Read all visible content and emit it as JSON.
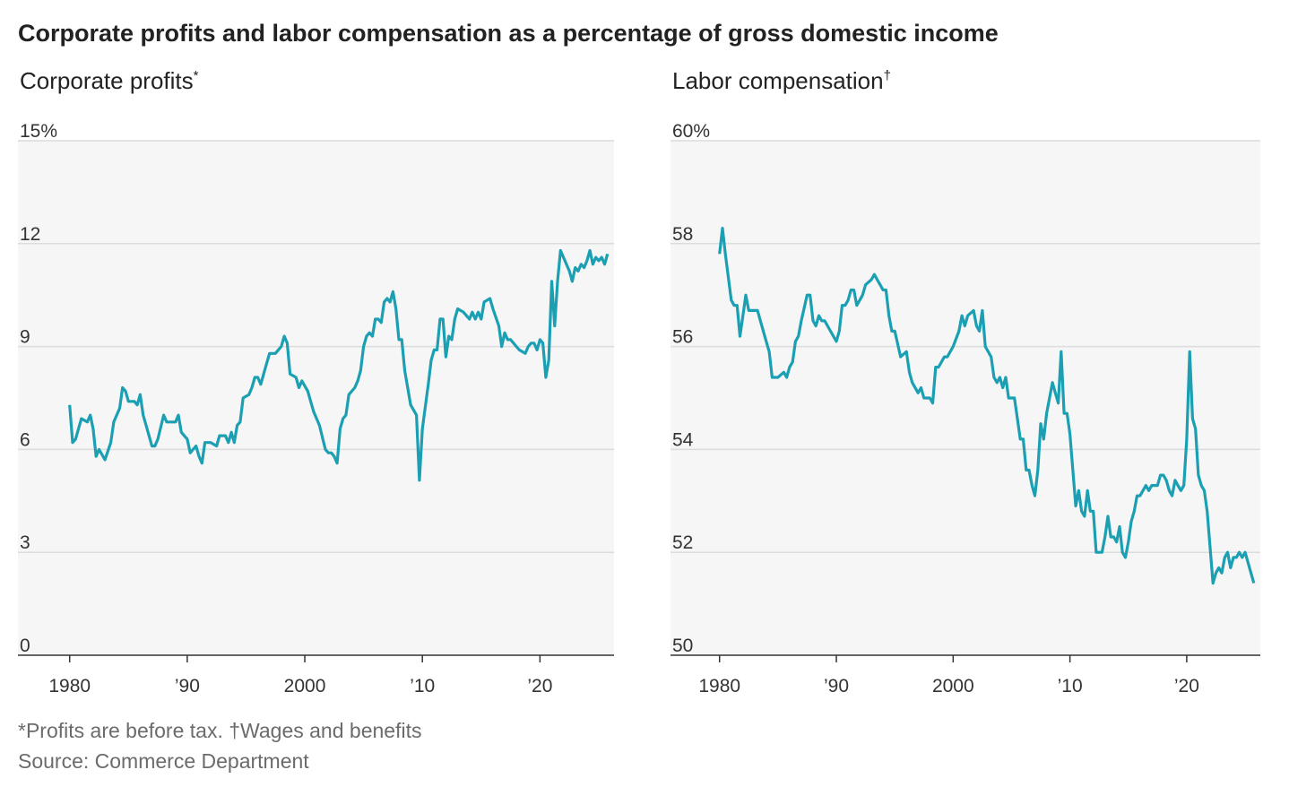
{
  "title": "Corporate profits and labor compensation as a percentage of gross domestic income",
  "footnote": "*Profits are before tax. †Wages and benefits",
  "source": "Source: Commerce Department",
  "chart_data": [
    {
      "type": "line",
      "title": "Corporate profits",
      "title_note": "*",
      "color": "#1a9fb3",
      "grid": true,
      "xlim": [
        1975.6,
        2026.3
      ],
      "ylim": [
        0,
        15
      ],
      "yticks": [
        0,
        3,
        6,
        9,
        12,
        {
          "value": 15,
          "label": "15%"
        }
      ],
      "xticks": [
        1980,
        {
          "value": 1990,
          "label": "’90"
        },
        2000,
        {
          "value": 2010,
          "label": "’10"
        },
        {
          "value": 2020,
          "label": "’20"
        }
      ],
      "x": [
        1980,
        1980.25,
        1980.5,
        1981,
        1981.5,
        1981.75,
        1982,
        1982.25,
        1982.5,
        1983,
        1983.5,
        1983.75,
        1984.25,
        1984.5,
        1984.75,
        1985,
        1985.5,
        1985.75,
        1986,
        1986.25,
        1986.5,
        1987,
        1987.25,
        1987.5,
        1988,
        1988.25,
        1988.75,
        1989,
        1989.25,
        1989.5,
        1990,
        1990.25,
        1990.5,
        1990.75,
        1991,
        1991.25,
        1991.5,
        1992,
        1992.5,
        1992.75,
        1993.25,
        1993.5,
        1993.75,
        1994,
        1994.25,
        1994.5,
        1994.75,
        1995.25,
        1995.5,
        1995.75,
        1996,
        1996.25,
        1996.75,
        1997,
        1997.5,
        1998,
        1998.25,
        1998.5,
        1998.75,
        1999.25,
        1999.5,
        1999.75,
        2000.25,
        2000.75,
        2001.25,
        2001.75,
        2002,
        2002.25,
        2002.5,
        2002.75,
        2003,
        2003.25,
        2003.5,
        2003.75,
        2004.25,
        2004.5,
        2004.75,
        2005,
        2005.25,
        2005.5,
        2005.75,
        2006,
        2006.25,
        2006.5,
        2006.75,
        2007,
        2007.25,
        2007.5,
        2007.75,
        2008,
        2008.25,
        2008.5,
        2009,
        2009.5,
        2009.75,
        2010,
        2010.5,
        2010.75,
        2011,
        2011.25,
        2011.5,
        2011.75,
        2012,
        2012.25,
        2012.5,
        2012.75,
        2013,
        2013.5,
        2013.75,
        2014,
        2014.25,
        2014.5,
        2014.75,
        2015,
        2015.25,
        2015.75,
        2016,
        2016.5,
        2016.75,
        2017,
        2017.25,
        2017.5,
        2018,
        2018.25,
        2018.75,
        2019,
        2019.25,
        2019.5,
        2019.75,
        2020,
        2020.25,
        2020.5,
        2020.75,
        2021,
        2021.25,
        2021.5,
        2021.75,
        2022,
        2022.5,
        2022.75,
        2023,
        2023.25,
        2023.5,
        2023.75,
        2024,
        2024.25,
        2024.5,
        2024.75,
        2025,
        2025.25,
        2025.5,
        2025.75
      ],
      "values": [
        7.3,
        6.2,
        6.3,
        6.9,
        6.8,
        7.0,
        6.6,
        5.8,
        6.0,
        5.7,
        6.2,
        6.8,
        7.2,
        7.8,
        7.7,
        7.4,
        7.4,
        7.3,
        7.6,
        7.0,
        6.7,
        6.1,
        6.1,
        6.3,
        7.0,
        6.8,
        6.8,
        6.8,
        7.0,
        6.5,
        6.3,
        5.9,
        6.0,
        6.1,
        5.8,
        5.6,
        6.2,
        6.2,
        6.1,
        6.4,
        6.4,
        6.2,
        6.5,
        6.2,
        6.7,
        6.8,
        7.5,
        7.6,
        7.8,
        8.1,
        8.1,
        7.9,
        8.5,
        8.8,
        8.8,
        9.0,
        9.3,
        9.1,
        8.2,
        8.1,
        7.8,
        8.0,
        7.7,
        7.1,
        6.7,
        6.0,
        5.9,
        5.9,
        5.8,
        5.6,
        6.6,
        6.9,
        7.0,
        7.6,
        7.8,
        8.0,
        8.3,
        9.0,
        9.3,
        9.4,
        9.3,
        9.8,
        9.8,
        9.7,
        10.3,
        10.4,
        10.3,
        10.6,
        10.1,
        9.2,
        9.2,
        8.3,
        7.3,
        7.0,
        5.1,
        6.6,
        7.9,
        8.6,
        8.9,
        8.9,
        9.8,
        9.8,
        8.7,
        9.3,
        9.2,
        9.8,
        10.1,
        10.0,
        9.9,
        9.8,
        10.0,
        9.8,
        10.0,
        9.8,
        10.3,
        10.4,
        10.1,
        9.6,
        9.0,
        9.4,
        9.2,
        9.2,
        9.0,
        8.9,
        8.8,
        9.0,
        9.1,
        9.1,
        8.9,
        9.2,
        9.1,
        8.1,
        8.6,
        10.9,
        9.6,
        10.9,
        11.8,
        11.6,
        11.2,
        10.9,
        11.3,
        11.2,
        11.4,
        11.3,
        11.5,
        11.8,
        11.4,
        11.6,
        11.5,
        11.6,
        11.4,
        11.7
      ]
    },
    {
      "type": "line",
      "title": "Labor compensation",
      "title_note": "†",
      "color": "#1a9fb3",
      "grid": true,
      "xlim": [
        1975.8,
        2026.3
      ],
      "ylim": [
        50,
        60
      ],
      "yticks": [
        50,
        52,
        54,
        56,
        58,
        {
          "value": 60,
          "label": "60%"
        }
      ],
      "xticks": [
        1980,
        {
          "value": 1990,
          "label": "’90"
        },
        2000,
        {
          "value": 2010,
          "label": "’10"
        },
        {
          "value": 2020,
          "label": "’20"
        }
      ],
      "x": [
        1980,
        1980.25,
        1980.5,
        1981,
        1981.25,
        1981.5,
        1981.75,
        1982,
        1982.25,
        1982.5,
        1983,
        1983.25,
        1983.5,
        1984,
        1984.25,
        1984.5,
        1985,
        1985.5,
        1985.75,
        1986,
        1986.25,
        1986.5,
        1986.75,
        1987,
        1987.5,
        1987.75,
        1988,
        1988.25,
        1988.5,
        1988.75,
        1989,
        1989.5,
        1990,
        1990.25,
        1990.5,
        1990.75,
        1991,
        1991.25,
        1991.5,
        1991.75,
        1992,
        1992.25,
        1992.5,
        1993,
        1993.25,
        1993.5,
        1993.75,
        1994,
        1994.25,
        1994.5,
        1994.75,
        1995,
        1995.5,
        1996,
        1996.25,
        1996.5,
        1997,
        1997.25,
        1997.5,
        1998,
        1998.25,
        1998.5,
        1998.75,
        1999.25,
        1999.5,
        2000,
        2000.5,
        2000.75,
        2001,
        2001.25,
        2001.75,
        2002,
        2002.25,
        2002.5,
        2002.75,
        2003.25,
        2003.5,
        2003.75,
        2004,
        2004.25,
        2004.5,
        2004.75,
        2005.25,
        2005.5,
        2005.75,
        2006,
        2006.25,
        2006.5,
        2006.75,
        2007,
        2007.25,
        2007.5,
        2007.75,
        2008,
        2008.5,
        2008.75,
        2009,
        2009.25,
        2009.5,
        2009.75,
        2010,
        2010.5,
        2010.75,
        2011,
        2011.25,
        2011.5,
        2011.75,
        2012,
        2012.25,
        2012.5,
        2012.75,
        2013,
        2013.25,
        2013.5,
        2013.75,
        2014,
        2014.25,
        2014.5,
        2014.75,
        2015,
        2015.25,
        2015.5,
        2015.75,
        2016,
        2016.25,
        2016.5,
        2016.75,
        2017,
        2017.5,
        2017.75,
        2018,
        2018.25,
        2018.5,
        2018.75,
        2019,
        2019.25,
        2019.5,
        2019.75,
        2020,
        2020.25,
        2020.5,
        2020.75,
        2021,
        2021.25,
        2021.5,
        2021.75,
        2022.25,
        2022.5,
        2022.75,
        2023,
        2023.25,
        2023.5,
        2023.75,
        2024,
        2024.25,
        2024.5,
        2024.75,
        2025,
        2025.25,
        2025.75
      ],
      "values": [
        57.8,
        58.3,
        57.8,
        56.9,
        56.8,
        56.8,
        56.2,
        56.6,
        57.0,
        56.7,
        56.7,
        56.7,
        56.5,
        56.1,
        55.9,
        55.4,
        55.4,
        55.5,
        55.4,
        55.6,
        55.7,
        56.1,
        56.2,
        56.5,
        57.0,
        57.0,
        56.5,
        56.4,
        56.6,
        56.5,
        56.5,
        56.3,
        56.1,
        56.3,
        56.8,
        56.8,
        56.9,
        57.1,
        57.1,
        56.8,
        56.9,
        57.0,
        57.2,
        57.3,
        57.4,
        57.3,
        57.2,
        57.1,
        57.1,
        56.6,
        56.3,
        56.3,
        55.8,
        55.9,
        55.5,
        55.3,
        55.1,
        55.2,
        55.0,
        55.0,
        54.9,
        55.6,
        55.6,
        55.8,
        55.8,
        56.0,
        56.3,
        56.6,
        56.4,
        56.6,
        56.7,
        56.4,
        56.3,
        56.7,
        56.0,
        55.8,
        55.4,
        55.3,
        55.4,
        55.2,
        55.4,
        55.0,
        55.0,
        54.6,
        54.2,
        54.2,
        53.6,
        53.6,
        53.3,
        53.1,
        53.6,
        54.5,
        54.2,
        54.7,
        55.3,
        55.1,
        54.9,
        55.9,
        54.7,
        54.7,
        54.3,
        52.9,
        53.2,
        52.8,
        52.7,
        53.2,
        52.8,
        52.8,
        52.0,
        52.0,
        52.0,
        52.3,
        52.7,
        52.3,
        52.3,
        52.2,
        52.5,
        52.0,
        51.9,
        52.2,
        52.6,
        52.8,
        53.1,
        53.1,
        53.2,
        53.3,
        53.2,
        53.3,
        53.3,
        53.5,
        53.5,
        53.4,
        53.2,
        53.1,
        53.4,
        53.3,
        53.2,
        53.3,
        54.2,
        55.9,
        54.6,
        54.4,
        53.5,
        53.3,
        53.2,
        52.8,
        51.4,
        51.6,
        51.7,
        51.6,
        51.9,
        52.0,
        51.7,
        51.9,
        51.9,
        52.0,
        51.9,
        52.0,
        51.8,
        51.4
      ]
    }
  ]
}
